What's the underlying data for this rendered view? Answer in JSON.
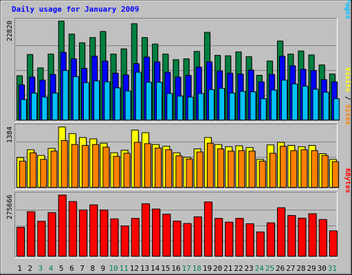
{
  "chart_data": {
    "type": "bar",
    "title": "Daily usage for January 2009",
    "categories": [
      "1",
      "2",
      "3",
      "4",
      "5",
      "6",
      "7",
      "8",
      "9",
      "10",
      "11",
      "12",
      "13",
      "14",
      "15",
      "16",
      "17",
      "18",
      "19",
      "20",
      "21",
      "22",
      "23",
      "24",
      "25",
      "26",
      "27",
      "28",
      "29",
      "30",
      "31"
    ],
    "weekend_days": [
      "3",
      "4",
      "10",
      "11",
      "17",
      "18",
      "24",
      "25",
      "31"
    ],
    "panels": [
      {
        "id": "hits",
        "ymax": 22820,
        "ymax_label": "22820",
        "legend": [
          "Pages",
          "Files",
          "Hits"
        ],
        "series": [
          {
            "name": "Hits",
            "color": "#008040",
            "values": [
              10200,
              15100,
              12000,
              15200,
              22800,
              19800,
              17800,
              19000,
              20400,
              15200,
              16400,
              22200,
              19000,
              17500,
              15200,
              13900,
              14100,
              15800,
              20200,
              14900,
              14800,
              15700,
              14600,
              10300,
              13600,
              18200,
              15200,
              15900,
              15000,
              12700,
              10600
            ]
          },
          {
            "name": "Files",
            "color": "#0000ff",
            "values": [
              8100,
              9900,
              9200,
              10500,
              15600,
              14100,
              11900,
              14700,
              13600,
              10800,
              10400,
              13000,
              14500,
              13400,
              11000,
              9900,
              10300,
              12200,
              13400,
              11300,
              10800,
              10600,
              11500,
              8800,
              10500,
              14700,
              12500,
              11700,
              11400,
              9300,
              8800
            ]
          },
          {
            "name": "Pages",
            "color": "#00c0ff",
            "values": [
              4700,
              6200,
              5300,
              6200,
              11400,
              10000,
              8600,
              9000,
              8800,
              7400,
              6700,
              11000,
              8700,
              8700,
              6100,
              5500,
              5300,
              6100,
              7000,
              7300,
              6200,
              6600,
              6500,
              4900,
              6900,
              9200,
              8300,
              7800,
              7100,
              6400,
              4900
            ]
          }
        ]
      },
      {
        "id": "visits",
        "ymax": 1384,
        "ymax_label": "1384",
        "legend": [
          "Sites",
          "Visits"
        ],
        "series": [
          {
            "name": "Visits",
            "color": "#ffff00",
            "values": [
              680,
              860,
              730,
              890,
              1380,
              1230,
              1140,
              1110,
              1010,
              790,
              850,
              1310,
              1250,
              980,
              940,
              790,
              690,
              880,
              1140,
              980,
              930,
              950,
              910,
              640,
              970,
              1030,
              960,
              930,
              960,
              770,
              640
            ]
          },
          {
            "name": "Sites",
            "color": "#ff8000",
            "values": [
              600,
              790,
              640,
              830,
              1070,
              980,
              960,
              980,
              920,
              710,
              780,
              1030,
              1000,
              900,
              860,
              720,
              650,
              810,
              1010,
              880,
              830,
              840,
              830,
              600,
              780,
              940,
              840,
              860,
              840,
              730,
              590
            ]
          }
        ]
      },
      {
        "id": "kbytes",
        "ymax": 275666,
        "ymax_label": "275666",
        "legend": [
          "KBytes"
        ],
        "series": [
          {
            "name": "KBytes",
            "color": "#ff0000",
            "values": [
              130000,
              200000,
              157000,
              196000,
              275000,
              246000,
              208000,
              231000,
              208000,
              168000,
              136000,
              170000,
              236000,
              212000,
              189000,
              158000,
              147000,
              177000,
              244000,
              170000,
              153000,
              170000,
              146000,
              109000,
              150000,
              218000,
              183000,
              171000,
              191000,
              165000,
              114000
            ]
          }
        ]
      }
    ]
  }
}
